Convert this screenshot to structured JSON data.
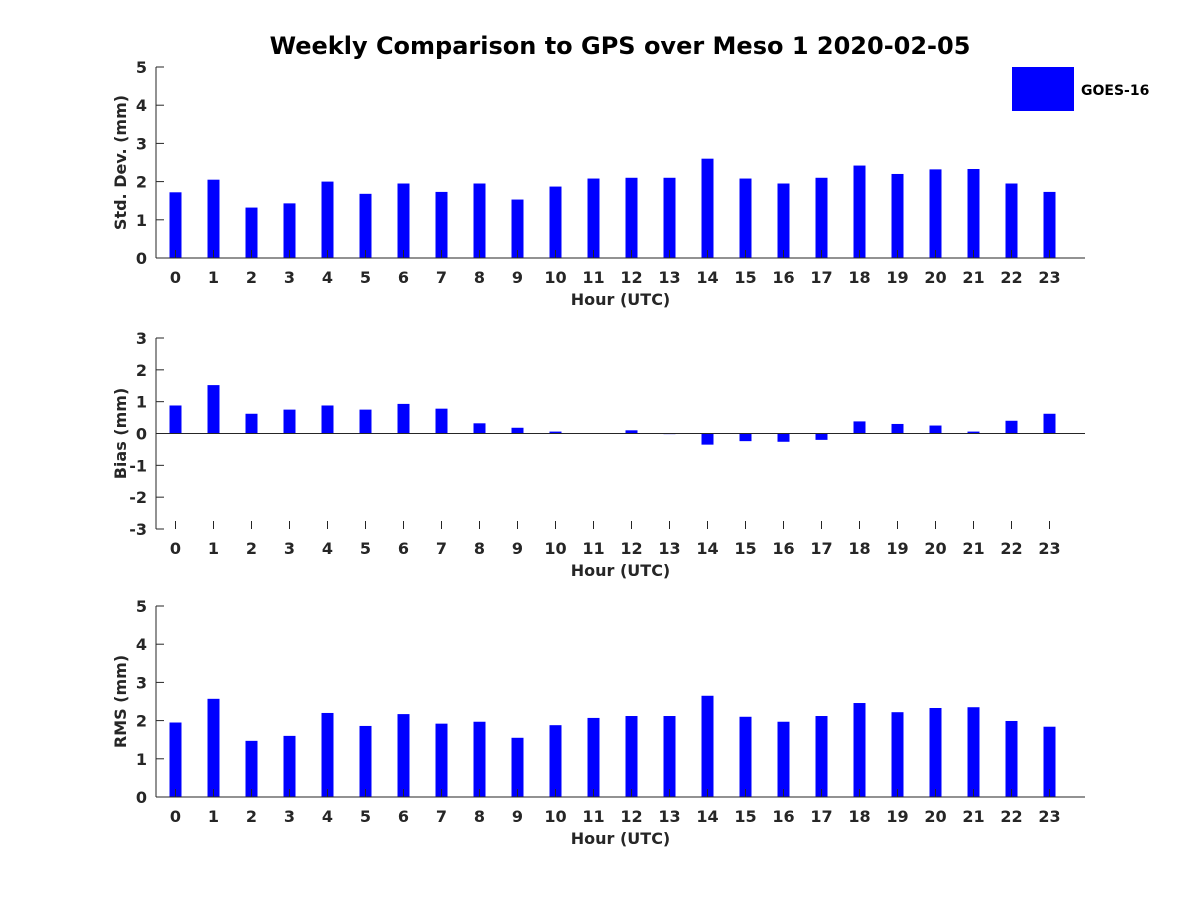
{
  "title": "Weekly Comparison to GPS over Meso 1 2020-02-05",
  "legend": {
    "label": "GOES-16",
    "color": "#0000ff",
    "placement": "top-right"
  },
  "chart_data": [
    {
      "type": "bar",
      "series_name": "GOES-16",
      "xlabel": "Hour (UTC)",
      "ylabel": "Std. Dev. (mm)",
      "ylim": [
        0,
        5
      ],
      "yticks": [
        0,
        1,
        2,
        3,
        4,
        5
      ],
      "categories": [
        "0",
        "1",
        "2",
        "3",
        "4",
        "5",
        "6",
        "7",
        "8",
        "9",
        "10",
        "11",
        "12",
        "13",
        "14",
        "15",
        "16",
        "17",
        "18",
        "19",
        "20",
        "21",
        "22",
        "23"
      ],
      "values": [
        1.72,
        2.05,
        1.32,
        1.43,
        2.0,
        1.68,
        1.95,
        1.73,
        1.95,
        1.53,
        1.87,
        2.08,
        2.1,
        2.1,
        2.6,
        2.08,
        1.95,
        2.1,
        2.42,
        2.2,
        2.32,
        2.33,
        1.95,
        1.73
      ]
    },
    {
      "type": "bar",
      "series_name": "GOES-16",
      "xlabel": "Hour (UTC)",
      "ylabel": "Bias (mm)",
      "ylim": [
        -3,
        3
      ],
      "yticks": [
        -3,
        -2,
        -1,
        0,
        1,
        2,
        3
      ],
      "categories": [
        "0",
        "1",
        "2",
        "3",
        "4",
        "5",
        "6",
        "7",
        "8",
        "9",
        "10",
        "11",
        "12",
        "13",
        "14",
        "15",
        "16",
        "17",
        "18",
        "19",
        "20",
        "21",
        "22",
        "23"
      ],
      "values": [
        0.88,
        1.52,
        0.62,
        0.75,
        0.88,
        0.75,
        0.93,
        0.78,
        0.32,
        0.18,
        0.06,
        0.0,
        0.1,
        -0.02,
        -0.35,
        -0.24,
        -0.26,
        -0.2,
        0.38,
        0.3,
        0.25,
        0.06,
        0.4,
        0.62
      ]
    },
    {
      "type": "bar",
      "series_name": "GOES-16",
      "xlabel": "Hour (UTC)",
      "ylabel": "RMS (mm)",
      "ylim": [
        0,
        5
      ],
      "yticks": [
        0,
        1,
        2,
        3,
        4,
        5
      ],
      "categories": [
        "0",
        "1",
        "2",
        "3",
        "4",
        "5",
        "6",
        "7",
        "8",
        "9",
        "10",
        "11",
        "12",
        "13",
        "14",
        "15",
        "16",
        "17",
        "18",
        "19",
        "20",
        "21",
        "22",
        "23"
      ],
      "values": [
        1.95,
        2.57,
        1.47,
        1.6,
        2.2,
        1.86,
        2.17,
        1.92,
        1.97,
        1.55,
        1.88,
        2.07,
        2.12,
        2.12,
        2.65,
        2.1,
        1.97,
        2.12,
        2.46,
        2.22,
        2.33,
        2.35,
        1.99,
        1.84
      ]
    }
  ]
}
